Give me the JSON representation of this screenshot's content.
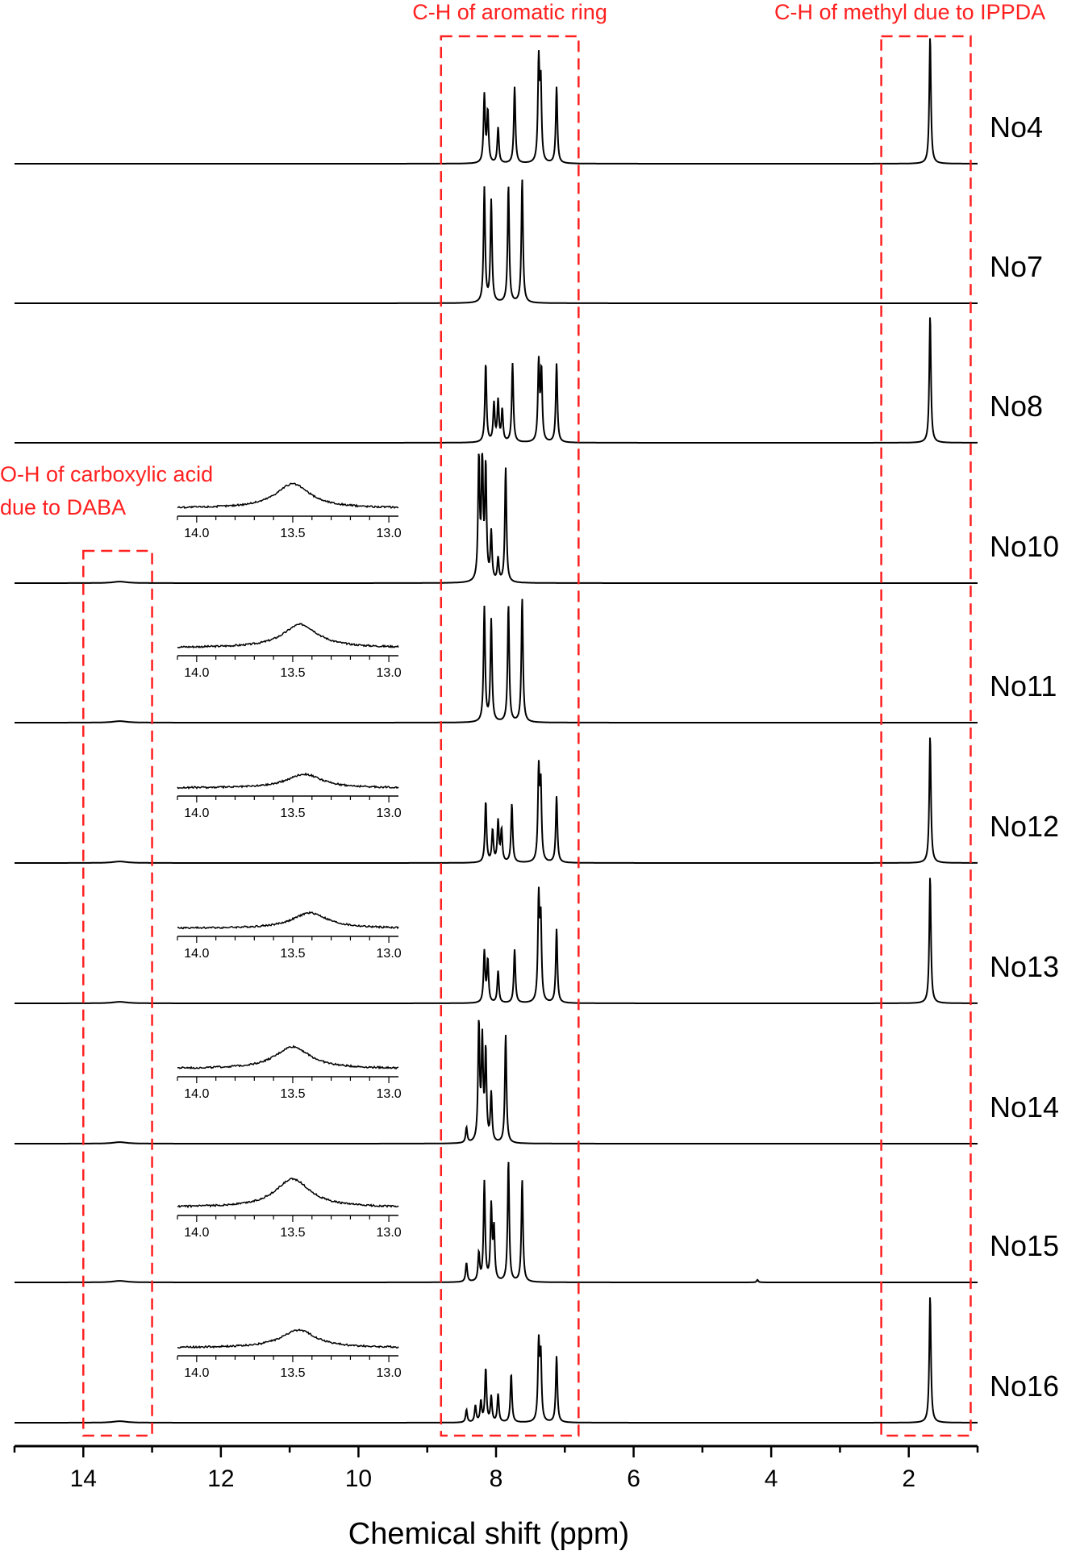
{
  "chart_data": {
    "type": "line",
    "xlabel": "Chemical shift (ppm)",
    "x_ticks": [
      "14",
      "12",
      "10",
      "8",
      "6",
      "4",
      "2"
    ],
    "xlim": [
      15.0,
      1.0
    ],
    "x_reversed": true,
    "annotation_color": "#ff2020",
    "trace_color": "#000000",
    "annotations": [
      {
        "text": "C-H of aromatic ring",
        "ppm_range": [
          8.8,
          6.8
        ]
      },
      {
        "text": "C-H of methyl due to IPPDA",
        "ppm_range": [
          2.4,
          1.1
        ]
      },
      {
        "text": "O-H of carboxylic acid",
        "text2": "due to DABA",
        "ppm_range": [
          14.0,
          13.0
        ]
      }
    ],
    "spectra": [
      {
        "label": "No4",
        "has_inset": false,
        "peaks": [
          [
            8.17,
            0.53
          ],
          [
            8.12,
            0.4
          ],
          [
            7.97,
            0.28
          ],
          [
            7.73,
            0.6
          ],
          [
            7.38,
            0.78
          ],
          [
            7.35,
            0.6
          ],
          [
            7.12,
            0.6
          ],
          [
            1.69,
            1.0
          ]
        ]
      },
      {
        "label": "No7",
        "has_inset": false,
        "peaks": [
          [
            8.17,
            0.9
          ],
          [
            8.07,
            0.8
          ],
          [
            7.82,
            0.92
          ],
          [
            7.62,
            0.97
          ]
        ]
      },
      {
        "label": "No8",
        "has_inset": false,
        "peaks": [
          [
            8.15,
            0.62
          ],
          [
            8.03,
            0.3
          ],
          [
            7.97,
            0.32
          ],
          [
            7.91,
            0.25
          ],
          [
            7.76,
            0.62
          ],
          [
            7.38,
            0.62
          ],
          [
            7.34,
            0.55
          ],
          [
            7.12,
            0.62
          ],
          [
            1.69,
            1.0
          ]
        ]
      },
      {
        "label": "No10",
        "has_inset": true,
        "inset_peak_ppm": 13.5,
        "inset_height": 0.75,
        "peaks": [
          [
            8.25,
            0.95
          ],
          [
            8.2,
            0.98
          ],
          [
            8.15,
            0.88
          ],
          [
            8.07,
            0.38
          ],
          [
            7.97,
            0.18
          ],
          [
            7.86,
            0.9
          ]
        ]
      },
      {
        "label": "No11",
        "has_inset": true,
        "inset_peak_ppm": 13.46,
        "inset_height": 0.72,
        "peaks": [
          [
            8.17,
            0.9
          ],
          [
            8.07,
            0.8
          ],
          [
            7.82,
            0.92
          ],
          [
            7.62,
            0.97
          ]
        ]
      },
      {
        "label": "No12",
        "has_inset": true,
        "inset_peak_ppm": 13.44,
        "inset_height": 0.43,
        "peaks": [
          [
            8.15,
            0.48
          ],
          [
            8.05,
            0.25
          ],
          [
            7.97,
            0.32
          ],
          [
            7.92,
            0.25
          ],
          [
            7.77,
            0.46
          ],
          [
            7.38,
            0.7
          ],
          [
            7.35,
            0.58
          ],
          [
            7.12,
            0.52
          ],
          [
            1.69,
            1.0
          ]
        ]
      },
      {
        "label": "No13",
        "has_inset": true,
        "inset_peak_ppm": 13.41,
        "inset_height": 0.48,
        "peaks": [
          [
            8.17,
            0.4
          ],
          [
            8.12,
            0.33
          ],
          [
            7.97,
            0.25
          ],
          [
            7.73,
            0.42
          ],
          [
            7.38,
            0.8
          ],
          [
            7.35,
            0.62
          ],
          [
            7.12,
            0.58
          ],
          [
            1.69,
            1.0
          ]
        ]
      },
      {
        "label": "No14",
        "has_inset": true,
        "inset_peak_ppm": 13.5,
        "inset_height": 0.68,
        "peaks": [
          [
            8.43,
            0.12
          ],
          [
            8.25,
            0.92
          ],
          [
            8.2,
            0.78
          ],
          [
            8.15,
            0.7
          ],
          [
            8.07,
            0.38
          ],
          [
            7.86,
            0.85
          ]
        ]
      },
      {
        "label": "No15",
        "has_inset": true,
        "inset_peak_ppm": 13.5,
        "inset_height": 0.88,
        "peaks": [
          [
            8.43,
            0.15
          ],
          [
            8.25,
            0.22
          ],
          [
            8.17,
            0.78
          ],
          [
            8.07,
            0.58
          ],
          [
            8.03,
            0.4
          ],
          [
            7.82,
            0.95
          ],
          [
            7.62,
            0.8
          ],
          [
            4.2,
            0.02
          ]
        ]
      },
      {
        "label": "No16",
        "has_inset": true,
        "inset_peak_ppm": 13.47,
        "inset_height": 0.55,
        "peaks": [
          [
            8.43,
            0.1
          ],
          [
            8.3,
            0.13
          ],
          [
            8.22,
            0.16
          ],
          [
            8.15,
            0.42
          ],
          [
            8.07,
            0.2
          ],
          [
            7.97,
            0.22
          ],
          [
            7.78,
            0.38
          ],
          [
            7.38,
            0.6
          ],
          [
            7.35,
            0.5
          ],
          [
            7.12,
            0.52
          ],
          [
            1.69,
            1.0
          ]
        ]
      }
    ],
    "inset": {
      "x_ticks": [
        "14.0",
        "13.5",
        "13.0"
      ],
      "xlim": [
        14.1,
        12.95
      ]
    }
  }
}
